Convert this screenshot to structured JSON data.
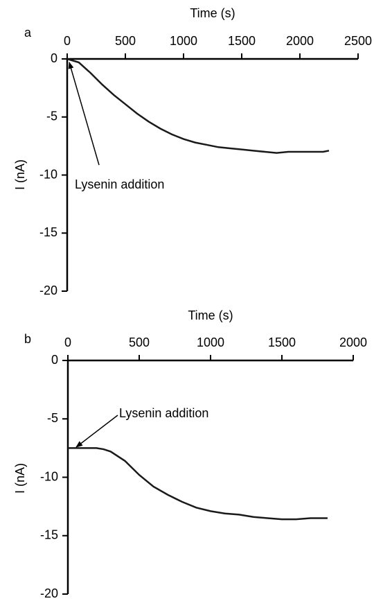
{
  "chart_data": [
    {
      "type": "line",
      "panel": "a",
      "x_label": "Time (s)",
      "y_label": "I (nA)",
      "xlim": [
        0,
        2500
      ],
      "xticks": [
        0,
        500,
        1000,
        1500,
        2000,
        2500
      ],
      "ylim": [
        -20,
        0
      ],
      "yticks": [
        0,
        -5,
        -10,
        -15,
        -20
      ],
      "annotation": "Lysenin addition",
      "color": "#1a1a1a",
      "x": [
        0,
        100,
        200,
        300,
        400,
        500,
        600,
        700,
        800,
        900,
        1000,
        1100,
        1200,
        1300,
        1400,
        1500,
        1600,
        1700,
        1800,
        1900,
        2000,
        2100,
        2200,
        2250
      ],
      "values": [
        0,
        -0.3,
        -1.2,
        -2.2,
        -3.1,
        -3.9,
        -4.7,
        -5.4,
        -6.0,
        -6.5,
        -6.9,
        -7.2,
        -7.4,
        -7.6,
        -7.7,
        -7.8,
        -7.9,
        -8.0,
        -8.1,
        -8.0,
        -8.0,
        -8.0,
        -8.0,
        -7.9
      ]
    },
    {
      "type": "line",
      "panel": "b",
      "x_label": "Time (s)",
      "y_label": "I (nA)",
      "xlim": [
        0,
        2000
      ],
      "xticks": [
        0,
        500,
        1000,
        1500,
        2000
      ],
      "ylim": [
        -20,
        0
      ],
      "yticks": [
        0,
        -5,
        -10,
        -15,
        -20
      ],
      "annotation": "Lysenin addition",
      "color": "#1a1a1a",
      "x": [
        0,
        100,
        200,
        250,
        300,
        400,
        500,
        600,
        700,
        800,
        900,
        1000,
        1100,
        1200,
        1300,
        1400,
        1500,
        1600,
        1700,
        1800,
        1820
      ],
      "values": [
        -7.5,
        -7.5,
        -7.5,
        -7.6,
        -7.8,
        -8.6,
        -9.8,
        -10.8,
        -11.5,
        -12.1,
        -12.6,
        -12.9,
        -13.1,
        -13.2,
        -13.4,
        -13.5,
        -13.6,
        -13.6,
        -13.5,
        -13.5,
        -13.5
      ]
    }
  ]
}
